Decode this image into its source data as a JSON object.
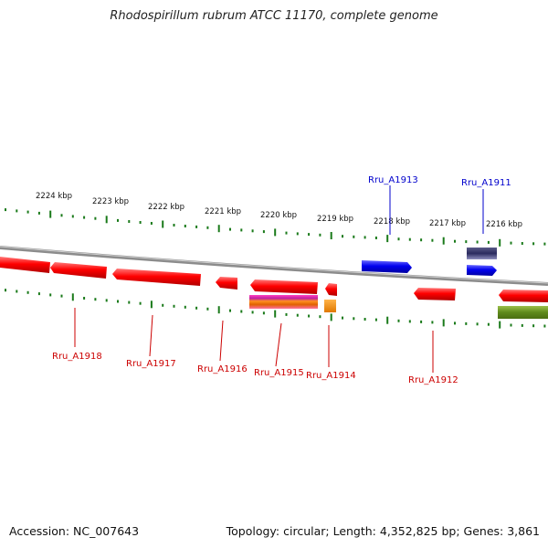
{
  "title": "Rhodospirillum rubrum ATCC 11170, complete genome",
  "footer": {
    "accession": "Accession: NC_007643",
    "summary": "Topology: circular; Length: 4,352,825 bp; Genes: 3,861"
  },
  "colors": {
    "background": "#ffffff",
    "backbone": "#8c8c8c",
    "tick": "#1a7a1a",
    "forward_gene": "#0000ee",
    "reverse_gene": "#ee0000"
  },
  "ticks": [
    "2224 kbp",
    "2223 kbp",
    "2222 kbp",
    "2221 kbp",
    "2220 kbp",
    "2219 kbp",
    "2218 kbp",
    "2217 kbp",
    "2216 kbp"
  ],
  "gene_labels": {
    "forward": [
      "Rru_A1913",
      "Rru_A1911"
    ],
    "reverse": [
      "Rru_A1918",
      "Rru_A1917",
      "Rru_A1916",
      "Rru_A1915",
      "Rru_A1914",
      "Rru_A1912"
    ]
  }
}
